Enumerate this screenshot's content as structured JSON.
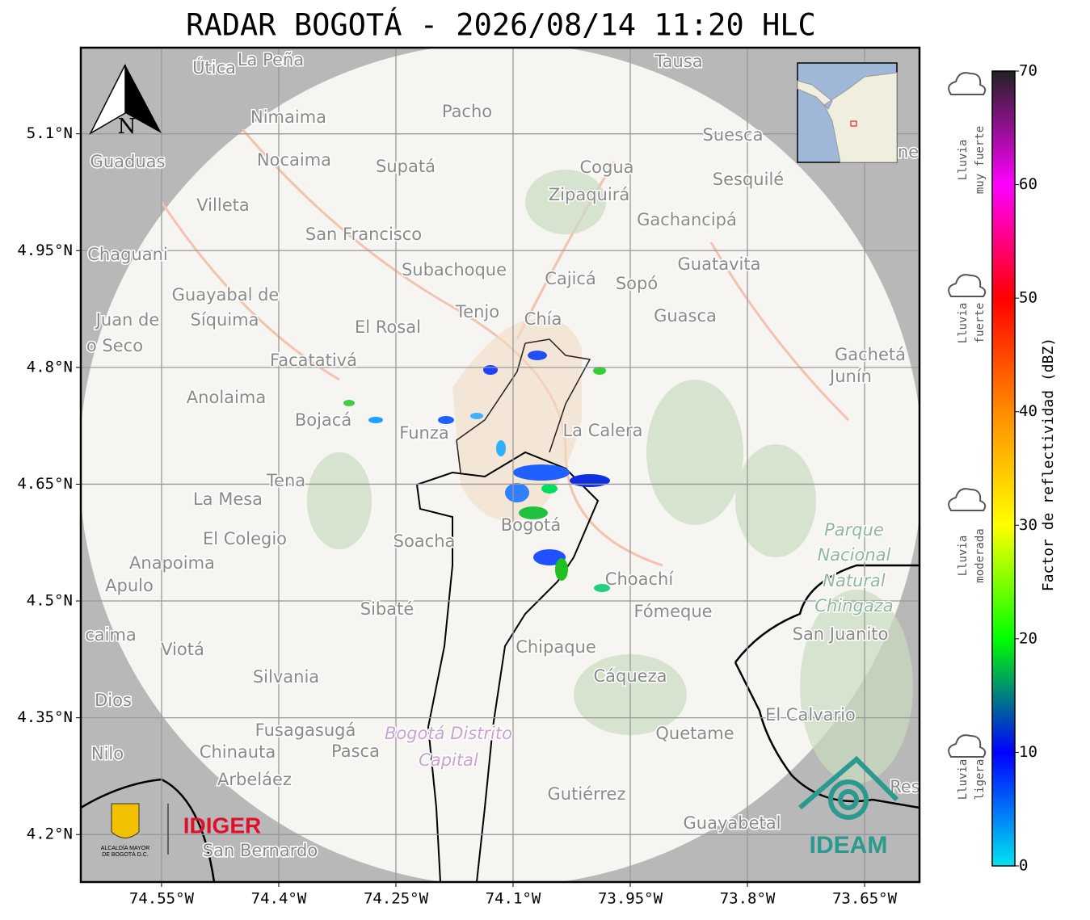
{
  "chart_data": {
    "type": "map",
    "title": "RADAR BOGOTÁ - 2026/08/14 11:20 HLC",
    "xlim": [
      -74.6534,
      -73.5797
    ],
    "ylim": [
      4.139,
      5.2107
    ],
    "xticks": [
      {
        "value": -74.55,
        "label": "74.55°W"
      },
      {
        "value": -74.4,
        "label": "74.4°W"
      },
      {
        "value": -74.25,
        "label": "74.25°W"
      },
      {
        "value": -74.1,
        "label": "74.1°W"
      },
      {
        "value": -73.95,
        "label": "73.95°W"
      },
      {
        "value": -73.8,
        "label": "73.8°W"
      },
      {
        "value": -73.65,
        "label": "73.65°W"
      }
    ],
    "yticks": [
      {
        "value": 5.1,
        "label": "5.1°N"
      },
      {
        "value": 4.95,
        "label": "4.95°N"
      },
      {
        "value": 4.8,
        "label": "4.8°N"
      },
      {
        "value": 4.65,
        "label": "4.65°N"
      },
      {
        "value": 4.5,
        "label": "4.5°N"
      },
      {
        "value": 4.35,
        "label": "4.35°N"
      },
      {
        "value": 4.2,
        "label": "4.2°N"
      }
    ],
    "grid": true,
    "north": "N",
    "colorbar": {
      "label": "Factor de reflectividad (dBZ)",
      "lim": [
        0,
        70
      ],
      "ticks": [
        0,
        10,
        20,
        30,
        40,
        50,
        60,
        70
      ],
      "colors": [
        "#00e5f0",
        "#0000ff",
        "#00ff00",
        "#ffff00",
        "#ff8c00",
        "#ff0000",
        "#ff00ff",
        "#222222"
      ]
    },
    "rain_levels": [
      [
        "Lluvia",
        "muy fuerte"
      ],
      [
        "Lluvia",
        "fuerte"
      ],
      [
        "Lluvia",
        "moderada"
      ],
      [
        "Lluvia",
        "ligera"
      ]
    ],
    "places": [
      "Útica",
      "La Peña",
      "Tausa",
      "Pacho",
      "Nimaima",
      "Suesca",
      "Guaduas",
      "Nocaima",
      "Supatá",
      "Cogua",
      "Sesquilé",
      "Zipaquirá",
      "Villeta",
      "Gachancipá",
      "San Francisco",
      "Chaguani",
      "Guatavita",
      "Subachoque",
      "Cajicá",
      "Sopó",
      "Guayabal de",
      "Síquima",
      "Juan de",
      "Tenjo",
      "Chía",
      "Guasca",
      "El Rosal",
      "o Seco",
      "Facatativá",
      "Gachetá",
      "Junín",
      "Anolaima",
      "Bojacá",
      "Funza",
      "La Calera",
      "Tena",
      "La Mesa",
      "Soacha",
      "Bogotá",
      "El Colegio",
      "Anapoima",
      "Apulo",
      "Choachí",
      "Sibaté",
      "Fómeque",
      "San Juanito",
      "caima",
      "Viotá",
      "Chipaque",
      "Silvania",
      "Cáqueza",
      "Dios",
      "El Calvario",
      "Fusagasugá",
      "Quetame",
      "Nilo",
      "Chinauta",
      "Pasca",
      "Arbeláez",
      "Res",
      "Gutiérrez",
      "Guayabetal",
      "San Bernardo",
      "ne"
    ],
    "parks": [
      "Parque",
      "Nacional",
      "Natural",
      "Chingaza"
    ],
    "district": [
      "Bogotá Distrito",
      "Capital"
    ],
    "logos": {
      "alcaldia": [
        "ALCALDÍA MAYOR",
        "DE BOGOTÁ D.C."
      ],
      "idiger": "IDIGER",
      "ideam": "IDEAM"
    }
  }
}
